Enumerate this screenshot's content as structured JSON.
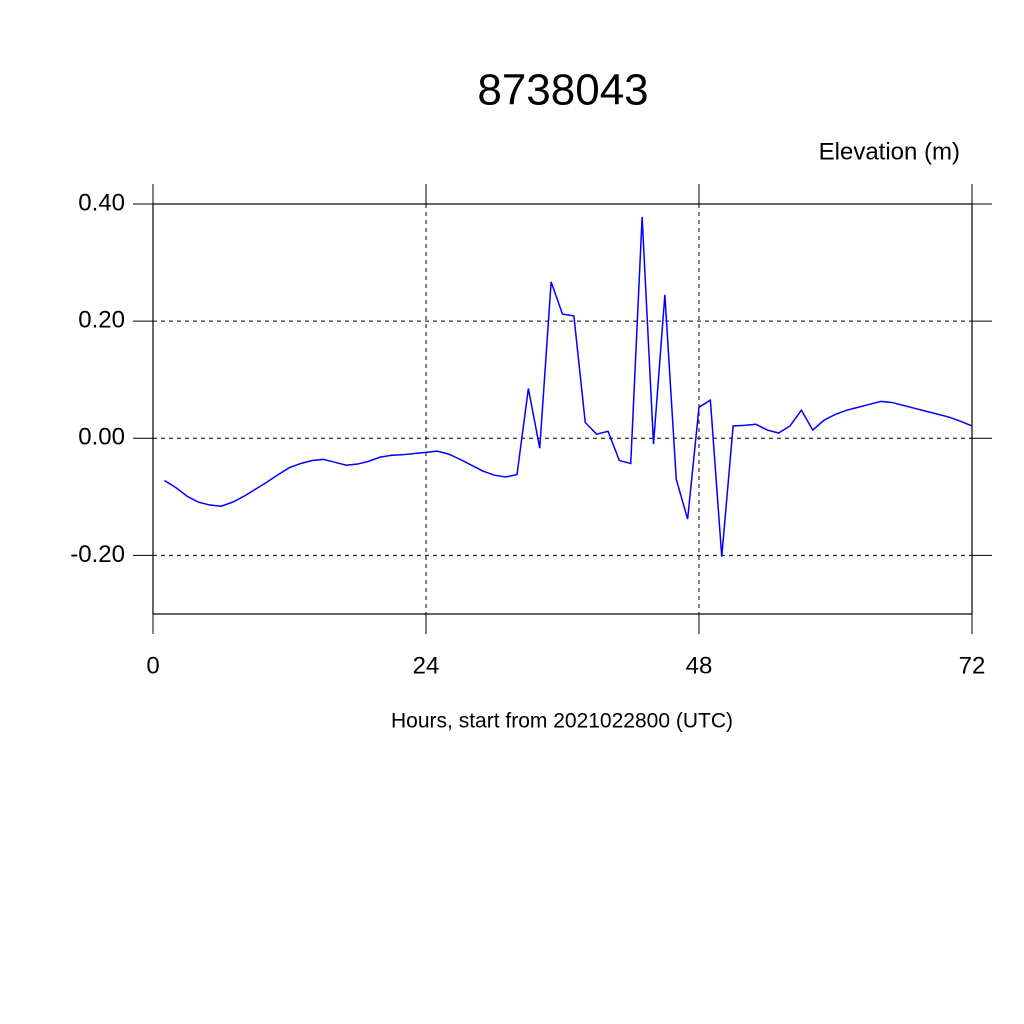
{
  "chart_data": {
    "type": "line",
    "title": "8738043",
    "ylabel": "Elevation (m)",
    "xlabel": "Hours, start from 2021022800 (UTC)",
    "x": [
      1,
      2,
      3,
      4,
      5,
      6,
      7,
      8,
      9,
      10,
      11,
      12,
      13,
      14,
      15,
      16,
      17,
      18,
      19,
      20,
      21,
      22,
      23,
      24,
      25,
      26,
      27,
      28,
      29,
      30,
      31,
      32,
      33,
      34,
      35,
      36,
      37,
      38,
      39,
      40,
      41,
      42,
      43,
      44,
      45,
      46,
      47,
      48,
      49,
      50,
      51,
      52,
      53,
      54,
      55,
      56,
      57,
      58,
      59,
      60,
      61,
      62,
      63,
      64,
      65,
      66,
      67,
      68,
      69,
      70,
      71,
      72
    ],
    "series": [
      {
        "name": "Elevation",
        "color": "#0000ff",
        "values": [
          -0.072,
          -0.084,
          -0.099,
          -0.109,
          -0.114,
          -0.116,
          -0.109,
          -0.099,
          -0.087,
          -0.075,
          -0.062,
          -0.05,
          -0.043,
          -0.038,
          -0.036,
          -0.041,
          -0.046,
          -0.044,
          -0.039,
          -0.032,
          -0.029,
          -0.028,
          -0.026,
          -0.024,
          -0.022,
          -0.027,
          -0.036,
          -0.046,
          -0.056,
          -0.063,
          -0.066,
          -0.062,
          0.085,
          -0.017,
          0.267,
          0.212,
          0.209,
          0.027,
          0.007,
          0.012,
          -0.038,
          -0.043,
          0.378,
          -0.01,
          0.245,
          -0.07,
          -0.138,
          0.053,
          0.065,
          -0.202,
          0.021,
          0.022,
          0.024,
          0.014,
          0.009,
          0.021,
          0.048,
          0.014,
          0.031,
          0.041,
          0.048,
          0.053,
          0.058,
          0.063,
          0.061,
          0.056,
          0.051,
          0.046,
          0.041,
          0.036,
          0.029,
          0.021
        ]
      }
    ],
    "xlim": [
      0,
      72
    ],
    "xticks": [
      0,
      24,
      48,
      72
    ],
    "ylim": [
      -0.3,
      0.4
    ],
    "yticks": [
      {
        "value": -0.2,
        "label": "-0.20"
      },
      {
        "value": 0,
        "label": "0.00"
      },
      {
        "value": 0.2,
        "label": "0.20"
      },
      {
        "value": 0.4,
        "label": "0.40"
      }
    ],
    "grid": true
  }
}
